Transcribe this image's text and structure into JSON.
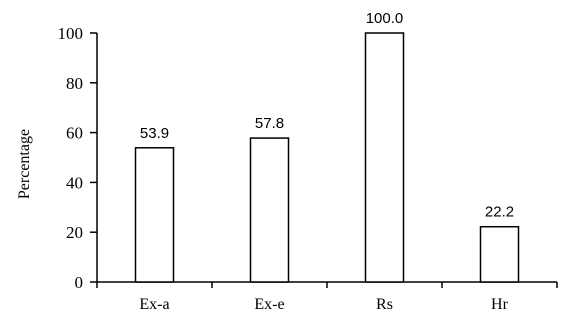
{
  "chart_data": {
    "type": "bar",
    "categories": [
      "Ex-a",
      "Ex-e",
      "Rs",
      "Hr"
    ],
    "values": [
      53.9,
      57.8,
      100.0,
      22.2
    ],
    "data_labels": [
      "53.9",
      "57.8",
      "100.0",
      "22.2"
    ],
    "title": "",
    "xlabel": "",
    "ylabel": "Percentage",
    "ylim": [
      0,
      100
    ],
    "yticks": [
      0,
      20,
      40,
      60,
      80,
      100
    ],
    "grid": false,
    "bar_fill": "#ffffff",
    "bar_stroke": "#000000"
  }
}
